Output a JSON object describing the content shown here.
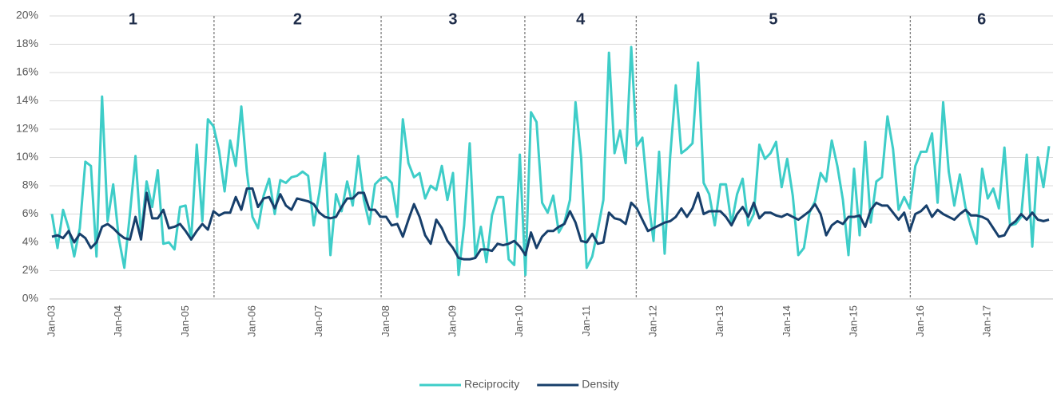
{
  "chart_data": {
    "type": "line",
    "categories": [
      "Jan-03",
      null,
      null,
      null,
      null,
      null,
      null,
      null,
      null,
      null,
      null,
      null,
      "Jan-04",
      null,
      null,
      null,
      null,
      null,
      null,
      null,
      null,
      null,
      null,
      null,
      "Jan-05",
      null,
      null,
      null,
      null,
      null,
      null,
      null,
      null,
      null,
      null,
      null,
      "Jan-06",
      null,
      null,
      null,
      null,
      null,
      null,
      null,
      null,
      null,
      null,
      null,
      "Jan-07",
      null,
      null,
      null,
      null,
      null,
      null,
      null,
      null,
      null,
      null,
      null,
      "Jan-08",
      null,
      null,
      null,
      null,
      null,
      null,
      null,
      null,
      null,
      null,
      null,
      "Jan-09",
      null,
      null,
      null,
      null,
      null,
      null,
      null,
      null,
      null,
      null,
      null,
      "Jan-10",
      null,
      null,
      null,
      null,
      null,
      null,
      null,
      null,
      null,
      null,
      null,
      "Jan-11",
      null,
      null,
      null,
      null,
      null,
      null,
      null,
      null,
      null,
      null,
      null,
      "Jan-12",
      null,
      null,
      null,
      null,
      null,
      null,
      null,
      null,
      null,
      null,
      null,
      "Jan-13",
      null,
      null,
      null,
      null,
      null,
      null,
      null,
      null,
      null,
      null,
      null,
      "Jan-14",
      null,
      null,
      null,
      null,
      null,
      null,
      null,
      null,
      null,
      null,
      null,
      "Jan-15",
      null,
      null,
      null,
      null,
      null,
      null,
      null,
      null,
      null,
      null,
      null,
      "Jan-16",
      null,
      null,
      null,
      null,
      null,
      null,
      null,
      null,
      null,
      null,
      null,
      "Jan-17",
      null,
      null,
      null,
      null,
      null,
      null,
      null,
      null,
      null,
      null,
      null
    ],
    "series": [
      {
        "name": "Reciprocity",
        "color": "#3ecdc8",
        "values": [
          6.0,
          3.6,
          6.3,
          5.0,
          3.0,
          5.0,
          9.7,
          9.4,
          3.0,
          14.3,
          5.5,
          8.1,
          4.3,
          2.2,
          6.0,
          10.1,
          4.5,
          8.3,
          6.5,
          9.1,
          3.9,
          4.0,
          3.5,
          6.5,
          6.6,
          4.2,
          10.9,
          5.5,
          12.7,
          12.2,
          10.5,
          7.6,
          11.2,
          9.4,
          13.6,
          9.0,
          5.8,
          5.0,
          7.3,
          8.5,
          6.0,
          8.4,
          8.2,
          8.6,
          8.7,
          9.0,
          8.7,
          5.2,
          7.5,
          10.3,
          3.1,
          7.4,
          6.2,
          8.3,
          6.6,
          10.1,
          7.0,
          5.3,
          8.1,
          8.5,
          8.6,
          8.2,
          5.8,
          12.7,
          9.6,
          8.6,
          8.9,
          7.1,
          8.0,
          7.7,
          9.4,
          7.0,
          8.9,
          1.7,
          5.2,
          11.0,
          3.0,
          5.1,
          2.6,
          5.9,
          7.2,
          7.2,
          2.8,
          2.4,
          10.2,
          1.7,
          13.2,
          12.5,
          6.8,
          6.1,
          7.3,
          4.7,
          5.4,
          7.0,
          13.9,
          10.0,
          2.2,
          3.0,
          4.9,
          7.0,
          17.4,
          10.3,
          11.9,
          9.6,
          17.8,
          10.8,
          11.4,
          7.2,
          4.1,
          10.4,
          3.2,
          10.1,
          15.1,
          10.3,
          10.6,
          11.0,
          16.7,
          8.2,
          7.4,
          5.2,
          8.1,
          8.1,
          5.3,
          7.4,
          8.5,
          5.2,
          6.0,
          10.9,
          9.9,
          10.3,
          11.1,
          7.9,
          9.9,
          7.3,
          3.1,
          3.6,
          6.1,
          6.9,
          8.9,
          8.3,
          11.2,
          9.4,
          7.0,
          3.1,
          9.2,
          4.5,
          11.1,
          5.4,
          8.3,
          8.6,
          12.9,
          10.6,
          6.3,
          7.2,
          6.4,
          9.4,
          10.4,
          10.4,
          11.7,
          6.8,
          13.9,
          9.0,
          6.6,
          8.8,
          6.5,
          5.1,
          3.9,
          9.2,
          7.1,
          7.8,
          6.4,
          10.7,
          5.2,
          5.3,
          5.8,
          10.2,
          3.7,
          10.0,
          7.9,
          10.8
        ]
      },
      {
        "name": "Density",
        "color": "#173f6b",
        "values": [
          4.4,
          4.5,
          4.3,
          4.8,
          4.0,
          4.6,
          4.3,
          3.6,
          4.0,
          5.1,
          5.3,
          5.0,
          4.6,
          4.3,
          4.2,
          5.8,
          4.2,
          7.5,
          5.7,
          5.7,
          6.3,
          5.0,
          5.1,
          5.3,
          4.8,
          4.2,
          4.8,
          5.3,
          4.9,
          6.2,
          5.9,
          6.1,
          6.1,
          7.2,
          6.3,
          7.8,
          7.8,
          6.5,
          7.1,
          7.2,
          6.4,
          7.4,
          6.6,
          6.3,
          7.1,
          7.0,
          6.9,
          6.7,
          6.1,
          5.8,
          5.7,
          5.8,
          6.5,
          7.1,
          7.1,
          7.5,
          7.5,
          6.3,
          6.3,
          5.8,
          5.8,
          5.2,
          5.3,
          4.4,
          5.6,
          6.7,
          5.8,
          4.5,
          3.9,
          5.6,
          5.0,
          4.1,
          3.6,
          2.9,
          2.8,
          2.8,
          2.9,
          3.5,
          3.5,
          3.4,
          3.9,
          3.8,
          3.9,
          4.1,
          3.7,
          3.1,
          4.7,
          3.6,
          4.4,
          4.8,
          4.8,
          5.1,
          5.3,
          6.2,
          5.4,
          4.1,
          4.0,
          4.6,
          3.9,
          4.0,
          6.1,
          5.7,
          5.6,
          5.3,
          6.8,
          6.4,
          5.6,
          4.8,
          5.0,
          5.2,
          5.4,
          5.5,
          5.8,
          6.4,
          5.8,
          6.4,
          7.5,
          6.0,
          6.2,
          6.2,
          6.2,
          5.8,
          5.2,
          6.0,
          6.5,
          5.8,
          6.8,
          5.7,
          6.1,
          6.1,
          5.9,
          5.8,
          6.0,
          5.8,
          5.6,
          5.9,
          6.2,
          6.7,
          6.0,
          4.5,
          5.2,
          5.5,
          5.3,
          5.8,
          5.8,
          5.9,
          5.1,
          6.3,
          6.8,
          6.6,
          6.6,
          6.1,
          5.6,
          6.1,
          4.8,
          6.0,
          6.2,
          6.6,
          5.8,
          6.3,
          6.0,
          5.8,
          5.6,
          6.0,
          6.3,
          5.9,
          5.9,
          5.8,
          5.6,
          5.0,
          4.4,
          4.5,
          5.2,
          5.5,
          6.0,
          5.6,
          6.1,
          5.6,
          5.5,
          5.6
        ]
      }
    ],
    "ylim": [
      0,
      20
    ],
    "yticks": [
      {
        "value": 0,
        "label": "0%"
      },
      {
        "value": 2,
        "label": "2%"
      },
      {
        "value": 4,
        "label": "4%"
      },
      {
        "value": 6,
        "label": "6%"
      },
      {
        "value": 8,
        "label": "8%"
      },
      {
        "value": 10,
        "label": "10%"
      },
      {
        "value": 12,
        "label": "12%"
      },
      {
        "value": 14,
        "label": "14%"
      },
      {
        "value": 16,
        "label": "16%"
      },
      {
        "value": 18,
        "label": "18%"
      },
      {
        "value": 20,
        "label": "20%"
      }
    ],
    "grid": true,
    "periods": [
      "1",
      "2",
      "3",
      "4",
      "5",
      "6"
    ],
    "dividers": [
      29.1,
      59.1,
      84.9,
      104.9,
      154.1
    ],
    "legend": "bottom"
  }
}
